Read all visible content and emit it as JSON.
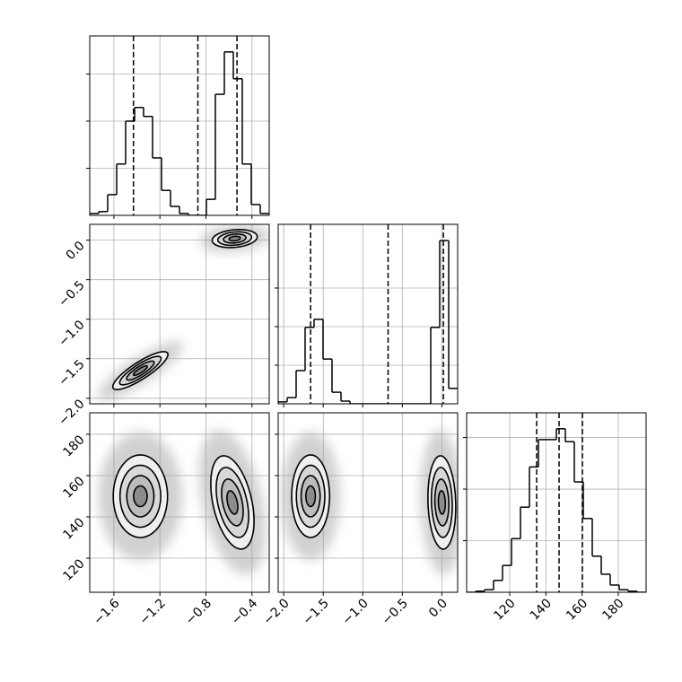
{
  "chart_data": {
    "type": "corner",
    "params": [
      {
        "lim": [
          -1.81,
          -0.25
        ],
        "ticks": [
          {
            "value": -1.6,
            "label": "−1.6"
          },
          {
            "value": -1.2,
            "label": "−1.2"
          },
          {
            "value": -0.8,
            "label": "−0.8"
          },
          {
            "value": -0.4,
            "label": "−0.4"
          }
        ]
      },
      {
        "lim": [
          -2.07,
          0.2
        ],
        "ticks": [
          {
            "value": -2.0,
            "label": "−2.0"
          },
          {
            "value": -1.5,
            "label": "−1.5"
          },
          {
            "value": -1.0,
            "label": "−1.0"
          },
          {
            "value": -0.5,
            "label": "−0.5"
          },
          {
            "value": 0.0,
            "label": "0.0"
          }
        ]
      },
      {
        "lim": [
          103.5,
          190.4
        ],
        "ticks": [
          120,
          140,
          160,
          180
        ]
      }
    ],
    "histograms": [
      {
        "bins": [
          -1.81,
          -1.732,
          -1.654,
          -1.576,
          -1.498,
          -1.42,
          -1.342,
          -1.264,
          -1.186,
          -1.108,
          -1.03,
          -0.952,
          -0.874,
          -0.796,
          -0.718,
          -0.64,
          -0.562,
          -0.484,
          -0.406,
          -0.328,
          -0.25
        ],
        "counts": [
          4,
          8,
          44,
          109,
          200,
          229,
          210,
          122,
          53,
          19,
          4,
          0,
          0,
          34,
          257,
          347,
          290,
          109,
          23,
          4
        ],
        "quantiles": [
          -1.43,
          -0.87,
          -0.53
        ],
        "ylim": [
          0,
          381
        ],
        "yticks": [
          100,
          200,
          300
        ]
      },
      {
        "bins": [
          -2.07,
          -1.9565,
          -1.843,
          -1.7295,
          -1.616,
          -1.5025,
          -1.389,
          -1.2755,
          -1.162,
          -1.0485,
          -0.935,
          -0.8215,
          -0.708,
          -0.5945,
          -0.481,
          -0.3675,
          -0.254,
          -0.1405,
          -0.027,
          0.0865,
          0.2
        ],
        "counts": [
          5,
          16,
          86,
          198,
          219,
          116,
          30,
          7,
          0,
          0,
          0,
          0,
          0,
          0,
          0,
          0,
          0,
          198,
          423,
          40
        ],
        "quantiles": [
          -1.66,
          -0.68,
          0.02
        ],
        "ylim": [
          0,
          465
        ],
        "yticks": [
          100,
          200,
          300
        ]
      },
      {
        "bins": [
          96.2,
          101.16,
          106.12,
          111.08,
          116.04,
          121,
          125.96,
          130.92,
          135.88,
          140.84,
          145.8,
          150.76,
          155.72,
          160.68,
          165.64,
          170.6,
          175.56,
          180.52,
          185.48,
          190.44,
          195.4
        ],
        "counts": [
          0,
          2,
          5,
          23,
          52,
          104,
          165,
          243,
          296,
          296,
          317,
          292,
          214,
          143,
          70,
          35,
          14,
          5,
          2,
          0
        ],
        "quantiles": [
          134.9,
          147.3,
          160.2
        ],
        "xlim": [
          96.2,
          195.4
        ],
        "ylim": [
          0,
          348
        ],
        "yticks": [
          100,
          200,
          300
        ]
      }
    ],
    "levels": [
      2,
      1.5,
      1,
      0.5
    ],
    "panels": [
      {
        "clusters": [
          {
            "cx": -1.37,
            "cy": -1.65,
            "sx": 0.12,
            "sy": 0.12,
            "rho": 0.85
          },
          {
            "cx": -0.55,
            "cy": 0.02,
            "sx": 0.098,
            "sy": 0.057,
            "rho": 0.2
          }
        ]
      },
      {
        "clusters": [
          {
            "cx": -1.37,
            "cy": 150,
            "sx": 0.118,
            "sy": 10,
            "rho": 0
          },
          {
            "cx": -0.57,
            "cy": 147,
            "sx": 0.094,
            "sy": 11.3,
            "rho": -0.4
          }
        ]
      },
      {
        "clusters": [
          {
            "cx": -1.66,
            "cy": 150,
            "sx": 0.12,
            "sy": 10,
            "rho": 0
          },
          {
            "cx": 0.0,
            "cy": 147,
            "sx": 0.088,
            "sy": 11.3,
            "rho": -0.1
          }
        ]
      }
    ]
  }
}
